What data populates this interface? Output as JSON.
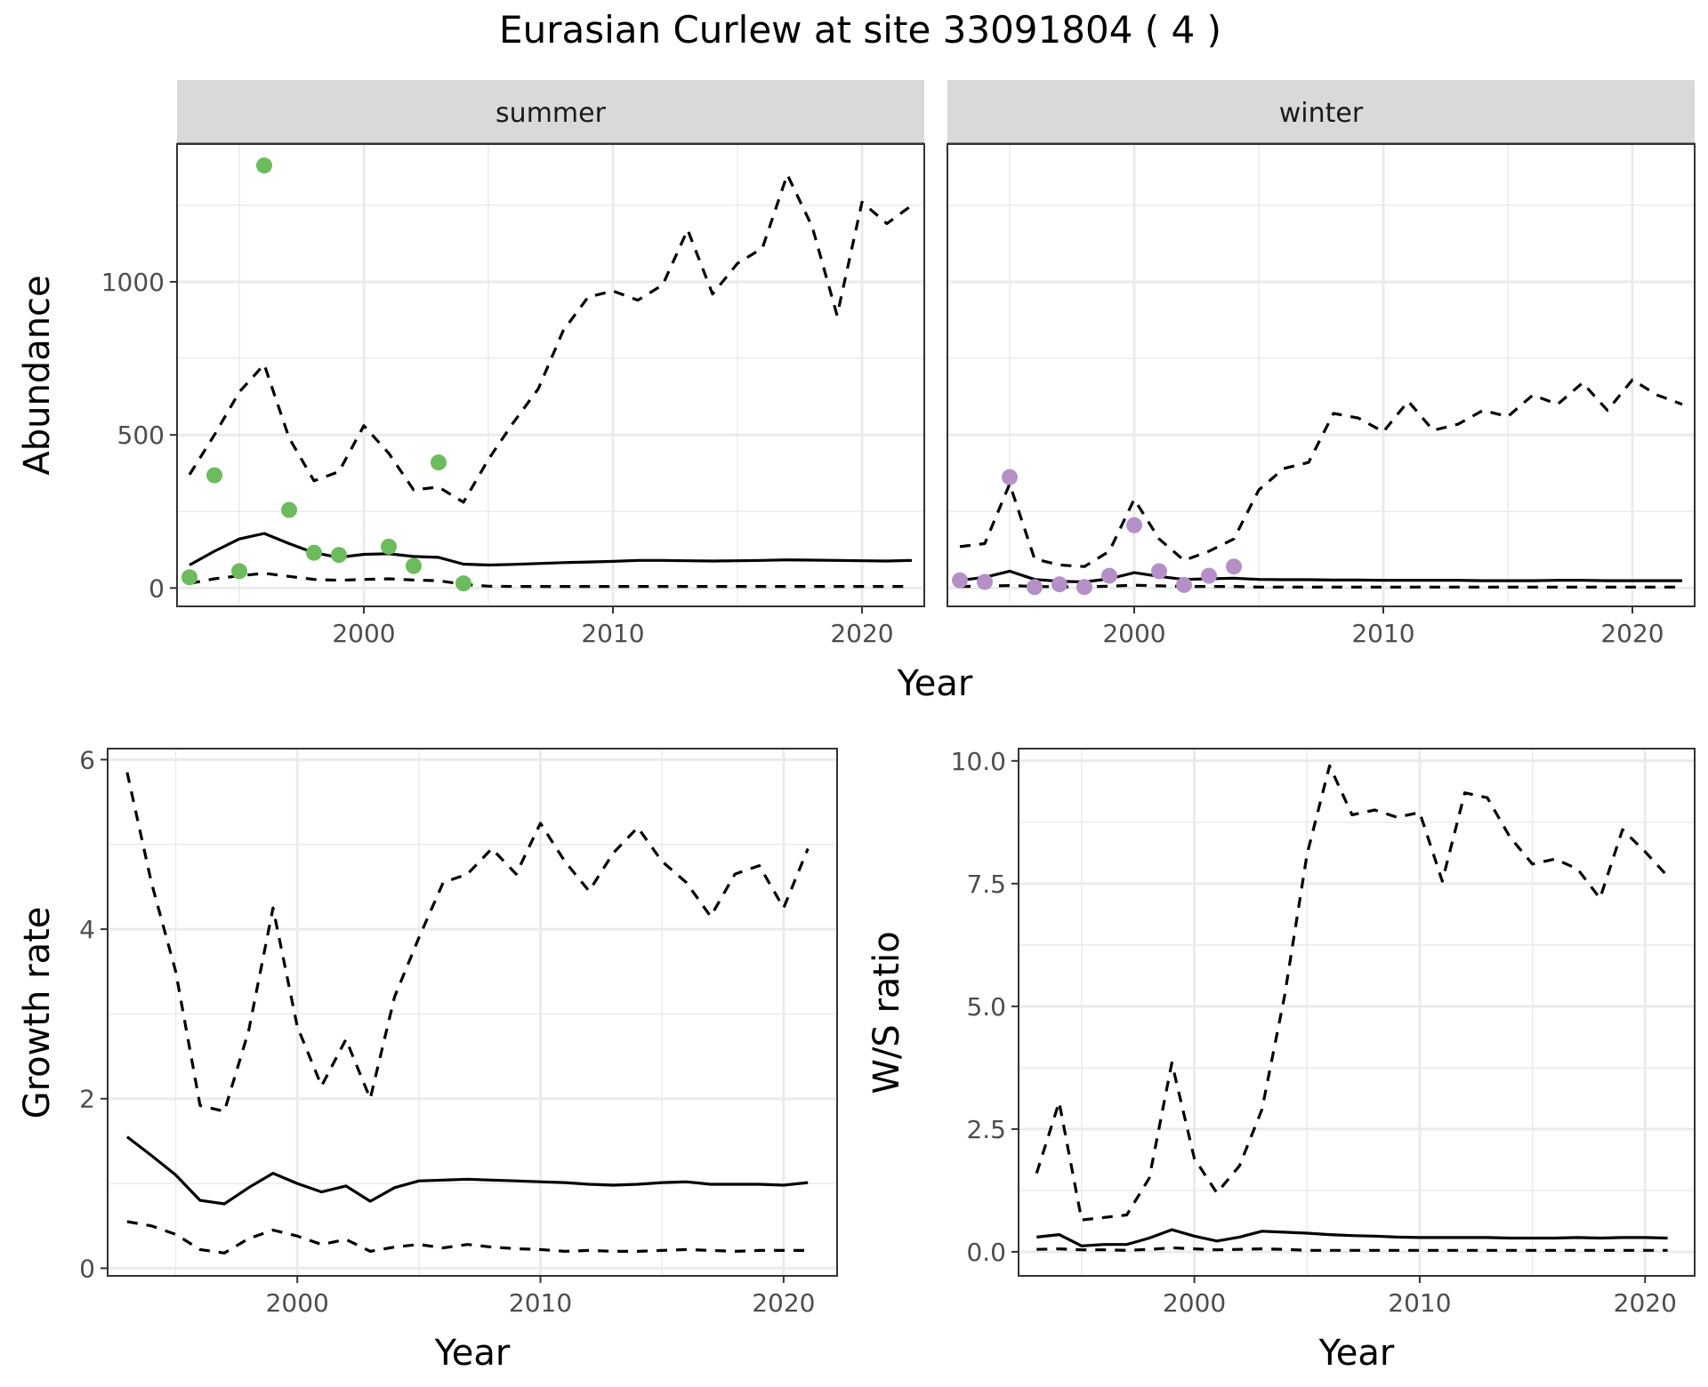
{
  "title": "Eurasian Curlew at site 33091804 ( 4 )",
  "colors": {
    "summer_points": "#6abd5a",
    "winter_points": "#b48fc8",
    "line": "#000000",
    "strip_bg": "#d9d9d9",
    "grid": "#ebebeb"
  },
  "chart_data": [
    {
      "type": "line",
      "facet": "summer",
      "xlabel": "Year",
      "ylabel": "Abundance",
      "xlim": [
        1992.5,
        2022.5
      ],
      "ylim": [
        -60,
        1450
      ],
      "x_ticks": [
        2000,
        2010,
        2020
      ],
      "y_ticks": [
        0,
        500,
        1000
      ],
      "grid": true,
      "points": {
        "x": [
          1993,
          1994,
          1995,
          1996,
          1997,
          1998,
          1999,
          2001,
          2002,
          2003,
          2004
        ],
        "y": [
          35,
          368,
          55,
          1380,
          255,
          115,
          108,
          135,
          72,
          410,
          15
        ]
      },
      "series": [
        {
          "style": "solid",
          "x": [
            1993,
            1994,
            1995,
            1996,
            1997,
            1998,
            1999,
            2000,
            2001,
            2002,
            2003,
            2004,
            2005,
            2006,
            2007,
            2008,
            2009,
            2010,
            2011,
            2012,
            2013,
            2014,
            2015,
            2016,
            2017,
            2018,
            2019,
            2020,
            2021,
            2022
          ],
          "values": [
            75,
            120,
            160,
            178,
            145,
            115,
            100,
            110,
            112,
            103,
            100,
            78,
            75,
            77,
            80,
            83,
            85,
            87,
            90,
            90,
            89,
            88,
            89,
            90,
            92,
            91,
            90,
            89,
            88,
            90
          ]
        },
        {
          "style": "dashed",
          "x": [
            1993,
            1994,
            1995,
            1996,
            1997,
            1998,
            1999,
            2000,
            2001,
            2002,
            2003,
            2004,
            2005,
            2006,
            2007,
            2008,
            2009,
            2010,
            2011,
            2012,
            2013,
            2014,
            2015,
            2016,
            2017,
            2018,
            2019,
            2020,
            2021,
            2022
          ],
          "values": [
            370,
            500,
            640,
            730,
            490,
            350,
            380,
            530,
            440,
            320,
            330,
            280,
            420,
            540,
            650,
            840,
            950,
            970,
            940,
            990,
            1170,
            960,
            1060,
            1110,
            1350,
            1180,
            890,
            1260,
            1190,
            1250
          ]
        },
        {
          "style": "dashed",
          "x": [
            1993,
            1994,
            1995,
            1996,
            1997,
            1998,
            1999,
            2000,
            2001,
            2002,
            2003,
            2004,
            2005,
            2006,
            2007,
            2008,
            2009,
            2010,
            2011,
            2012,
            2013,
            2014,
            2015,
            2016,
            2017,
            2018,
            2019,
            2020,
            2021,
            2022
          ],
          "values": [
            15,
            30,
            40,
            48,
            38,
            28,
            25,
            28,
            30,
            26,
            24,
            12,
            6,
            5,
            5,
            5,
            5,
            5,
            5,
            5,
            5,
            5,
            5,
            5,
            5,
            5,
            5,
            5,
            5,
            5
          ]
        }
      ]
    },
    {
      "type": "line",
      "facet": "winter",
      "xlabel": "Year",
      "ylabel": "Abundance",
      "xlim": [
        1992.5,
        2022.5
      ],
      "ylim": [
        -60,
        1450
      ],
      "x_ticks": [
        2000,
        2010,
        2020
      ],
      "y_ticks": [
        0,
        500,
        1000
      ],
      "grid": true,
      "points": {
        "x": [
          1993,
          1994,
          1995,
          1996,
          1997,
          1998,
          1999,
          2000,
          2001,
          2002,
          2003,
          2004
        ],
        "y": [
          25,
          20,
          362,
          3,
          12,
          3,
          40,
          205,
          55,
          10,
          40,
          70
        ]
      },
      "series": [
        {
          "style": "solid",
          "x": [
            1993,
            1994,
            1995,
            1996,
            1997,
            1998,
            1999,
            2000,
            2001,
            2002,
            2003,
            2004,
            2005,
            2006,
            2007,
            2008,
            2009,
            2010,
            2011,
            2012,
            2013,
            2014,
            2015,
            2016,
            2017,
            2018,
            2019,
            2020,
            2021,
            2022
          ],
          "values": [
            25,
            35,
            55,
            28,
            22,
            20,
            30,
            50,
            38,
            28,
            30,
            32,
            28,
            27,
            27,
            26,
            26,
            25,
            25,
            25,
            25,
            24,
            24,
            24,
            25,
            25,
            24,
            24,
            24,
            24
          ]
        },
        {
          "style": "dashed",
          "x": [
            1993,
            1994,
            1995,
            1996,
            1997,
            1998,
            1999,
            2000,
            2001,
            2002,
            2003,
            2004,
            2005,
            2006,
            2007,
            2008,
            2009,
            2010,
            2011,
            2012,
            2013,
            2014,
            2015,
            2016,
            2017,
            2018,
            2019,
            2020,
            2021,
            2022
          ],
          "values": [
            135,
            145,
            340,
            95,
            75,
            70,
            120,
            290,
            160,
            90,
            120,
            160,
            320,
            390,
            410,
            570,
            555,
            510,
            610,
            515,
            535,
            580,
            560,
            630,
            600,
            670,
            580,
            680,
            630,
            600
          ]
        },
        {
          "style": "dashed",
          "x": [
            1993,
            1994,
            1995,
            1996,
            1997,
            1998,
            1999,
            2000,
            2001,
            2002,
            2003,
            2004,
            2005,
            2006,
            2007,
            2008,
            2009,
            2010,
            2011,
            2012,
            2013,
            2014,
            2015,
            2016,
            2017,
            2018,
            2019,
            2020,
            2021,
            2022
          ],
          "values": [
            5,
            6,
            8,
            5,
            4,
            4,
            6,
            9,
            7,
            5,
            5,
            5,
            3,
            3,
            3,
            3,
            3,
            3,
            3,
            3,
            3,
            3,
            3,
            3,
            3,
            3,
            3,
            3,
            3,
            3
          ]
        }
      ]
    },
    {
      "type": "line",
      "xlabel": "Year",
      "ylabel": "Growth rate",
      "xlim": [
        1992.2,
        2022.2
      ],
      "ylim": [
        -0.09,
        6.13
      ],
      "x_ticks": [
        2000,
        2010,
        2020
      ],
      "y_ticks": [
        0,
        2,
        4,
        6
      ],
      "grid": true,
      "series": [
        {
          "style": "solid",
          "x": [
            1993,
            1994,
            1995,
            1996,
            1997,
            1998,
            1999,
            2000,
            2001,
            2002,
            2003,
            2004,
            2005,
            2006,
            2007,
            2008,
            2009,
            2010,
            2011,
            2012,
            2013,
            2014,
            2015,
            2016,
            2017,
            2018,
            2019,
            2020,
            2021
          ],
          "values": [
            1.55,
            1.33,
            1.1,
            0.8,
            0.76,
            0.95,
            1.12,
            1.0,
            0.9,
            0.97,
            0.79,
            0.95,
            1.03,
            1.04,
            1.05,
            1.04,
            1.03,
            1.02,
            1.01,
            0.99,
            0.98,
            0.99,
            1.01,
            1.02,
            0.99,
            0.99,
            0.99,
            0.98,
            1.01
          ]
        },
        {
          "style": "dashed",
          "x": [
            1993,
            1994,
            1995,
            1996,
            1997,
            1998,
            1999,
            2000,
            2001,
            2002,
            2003,
            2004,
            2005,
            2006,
            2007,
            2008,
            2009,
            2010,
            2011,
            2012,
            2013,
            2014,
            2015,
            2016,
            2017,
            2018,
            2019,
            2020,
            2021
          ],
          "values": [
            5.85,
            4.55,
            3.5,
            1.92,
            1.85,
            2.8,
            4.25,
            2.85,
            2.15,
            2.7,
            2.0,
            3.2,
            3.9,
            4.55,
            4.65,
            4.95,
            4.65,
            5.25,
            4.8,
            4.45,
            4.9,
            5.2,
            4.8,
            4.55,
            4.15,
            4.65,
            4.75,
            4.25,
            4.95
          ]
        },
        {
          "style": "dashed",
          "x": [
            1993,
            1994,
            1995,
            1996,
            1997,
            1998,
            1999,
            2000,
            2001,
            2002,
            2003,
            2004,
            2005,
            2006,
            2007,
            2008,
            2009,
            2010,
            2011,
            2012,
            2013,
            2014,
            2015,
            2016,
            2017,
            2018,
            2019,
            2020,
            2021
          ],
          "values": [
            0.55,
            0.5,
            0.4,
            0.22,
            0.18,
            0.35,
            0.45,
            0.38,
            0.28,
            0.34,
            0.2,
            0.25,
            0.28,
            0.24,
            0.28,
            0.25,
            0.23,
            0.22,
            0.2,
            0.21,
            0.2,
            0.2,
            0.21,
            0.22,
            0.21,
            0.2,
            0.21,
            0.21,
            0.21
          ]
        }
      ]
    },
    {
      "type": "line",
      "xlabel": "Year",
      "ylabel": "W/S ratio",
      "xlim": [
        1992.2,
        2022.2
      ],
      "ylim": [
        -0.49,
        10.25
      ],
      "x_ticks": [
        2000,
        2010,
        2020
      ],
      "y_ticks": [
        "0.0",
        "2.5",
        "5.0",
        "7.5",
        "10.0"
      ],
      "grid": true,
      "series": [
        {
          "style": "solid",
          "x": [
            1993,
            1994,
            1995,
            1996,
            1997,
            1998,
            1999,
            2000,
            2001,
            2002,
            2003,
            2004,
            2005,
            2006,
            2007,
            2008,
            2009,
            2010,
            2011,
            2012,
            2013,
            2014,
            2015,
            2016,
            2017,
            2018,
            2019,
            2020,
            2021
          ],
          "values": [
            0.3,
            0.35,
            0.12,
            0.15,
            0.15,
            0.28,
            0.45,
            0.32,
            0.22,
            0.3,
            0.42,
            0.4,
            0.38,
            0.35,
            0.33,
            0.32,
            0.3,
            0.29,
            0.29,
            0.29,
            0.29,
            0.28,
            0.28,
            0.28,
            0.29,
            0.28,
            0.29,
            0.29,
            0.28
          ]
        },
        {
          "style": "dashed",
          "x": [
            1993,
            1994,
            1995,
            1996,
            1997,
            1998,
            1999,
            2000,
            2001,
            2002,
            2003,
            2004,
            2005,
            2006,
            2007,
            2008,
            2009,
            2010,
            2011,
            2012,
            2013,
            2014,
            2015,
            2016,
            2017,
            2018,
            2019,
            2020,
            2021
          ],
          "values": [
            1.6,
            3.05,
            0.65,
            0.7,
            0.75,
            1.5,
            3.85,
            1.9,
            1.2,
            1.75,
            2.9,
            5.2,
            8.1,
            9.9,
            8.9,
            9.0,
            8.85,
            8.95,
            7.55,
            9.35,
            9.25,
            8.45,
            7.9,
            8.0,
            7.8,
            7.2,
            8.6,
            8.15,
            7.65
          ]
        },
        {
          "style": "dashed",
          "x": [
            1993,
            1994,
            1995,
            1996,
            1997,
            1998,
            1999,
            2000,
            2001,
            2002,
            2003,
            2004,
            2005,
            2006,
            2007,
            2008,
            2009,
            2010,
            2011,
            2012,
            2013,
            2014,
            2015,
            2016,
            2017,
            2018,
            2019,
            2020,
            2021
          ],
          "values": [
            0.05,
            0.06,
            0.04,
            0.04,
            0.03,
            0.05,
            0.08,
            0.06,
            0.04,
            0.05,
            0.06,
            0.05,
            0.03,
            0.03,
            0.03,
            0.03,
            0.03,
            0.03,
            0.03,
            0.03,
            0.03,
            0.03,
            0.03,
            0.03,
            0.03,
            0.03,
            0.03,
            0.03,
            0.03
          ]
        }
      ]
    }
  ]
}
